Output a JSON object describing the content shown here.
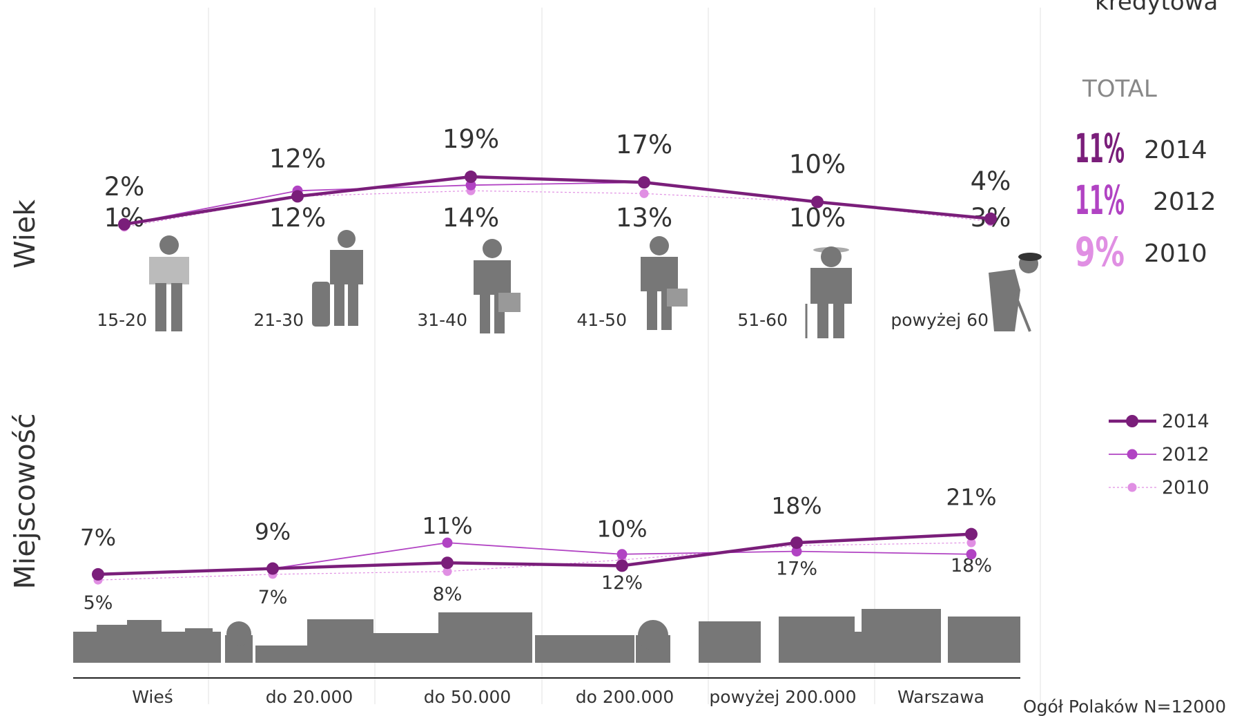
{
  "chart_data": [
    {
      "type": "line",
      "axis_title": "Wiek",
      "categories": [
        "15-20",
        "21-30",
        "31-40",
        "41-50",
        "51-60",
        "powyżej 60"
      ],
      "ylim": [
        0,
        20
      ],
      "series": [
        {
          "name": "2014",
          "color": "#7a1e7a",
          "line_style": "solid",
          "values": [
            2,
            12,
            19,
            17,
            10,
            4
          ],
          "value_labels": [
            "2%",
            "12%",
            "19%",
            "17%",
            "10%",
            "4%"
          ]
        },
        {
          "name": "2012",
          "color": "#b143c3",
          "line_style": "solid",
          "values": [
            2,
            14,
            16,
            17,
            10,
            4
          ]
        },
        {
          "name": "2010",
          "color": "#e08fe3",
          "line_style": "dotted",
          "values": [
            1,
            12,
            14,
            13,
            10,
            3
          ],
          "value_labels": [
            "1%",
            "12%",
            "14%",
            "13%",
            "10%",
            "3%"
          ]
        }
      ]
    },
    {
      "type": "line",
      "axis_title": "Miejscowość",
      "categories": [
        "Wieś",
        "do 20.000",
        "do 50.000",
        "do 200.000",
        "powyżej 200.000",
        "Warszawa"
      ],
      "ylim": [
        0,
        25
      ],
      "series": [
        {
          "name": "2014",
          "color": "#7a1e7a",
          "line_style": "solid",
          "values": [
            7,
            9,
            11,
            10,
            18,
            21
          ],
          "value_labels": [
            "7%",
            "9%",
            "11%",
            "10%",
            "18%",
            "21%"
          ]
        },
        {
          "name": "2012",
          "color": "#b143c3",
          "line_style": "solid",
          "values": [
            7,
            9,
            18,
            14,
            15,
            14
          ]
        },
        {
          "name": "2010",
          "color": "#e08fe3",
          "line_style": "dotted",
          "values": [
            5,
            7,
            8,
            12,
            17,
            18
          ],
          "value_labels": [
            "5%",
            "7%",
            "8%",
            "12%",
            "17%",
            "18%"
          ]
        }
      ]
    }
  ],
  "header": "kredytowa",
  "total": {
    "title": "TOTAL",
    "items": [
      {
        "label": "11%",
        "year": "2014"
      },
      {
        "label": "11%",
        "year": "2012"
      },
      {
        "label": "9%",
        "year": "2010"
      }
    ]
  },
  "footnote": "Ogół Polaków N=12000"
}
